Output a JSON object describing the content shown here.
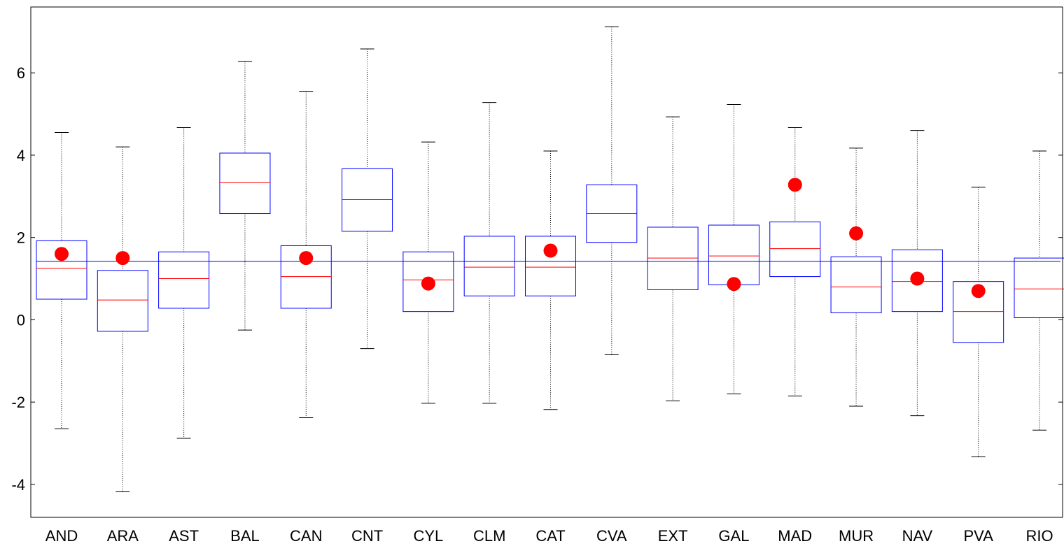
{
  "chart_data": {
    "type": "boxplot",
    "title": "",
    "xlabel": "",
    "ylabel": "",
    "ylim": [
      -4.8,
      7.6
    ],
    "yticks": [
      -4,
      -2,
      0,
      2,
      4,
      6
    ],
    "ytick_labels": [
      "-4",
      "-2",
      "0",
      "2",
      "4",
      "6"
    ],
    "reference_line": 1.42,
    "grid": false,
    "colors": {
      "box": "#0000ff",
      "median": "#ff0000",
      "whisker": "#000000",
      "point": "#ff0000",
      "reference": "#0000ff"
    },
    "categories": [
      "AND",
      "ARA",
      "AST",
      "BAL",
      "CAN",
      "CNT",
      "CYL",
      "CLM",
      "CAT",
      "CVA",
      "EXT",
      "GAL",
      "MAD",
      "MUR",
      "NAV",
      "PVA",
      "RIO"
    ],
    "boxes": [
      {
        "min": -2.65,
        "q1": 0.5,
        "median": 1.25,
        "q3": 1.92,
        "max": 4.55,
        "point": 1.6
      },
      {
        "min": -4.18,
        "q1": -0.28,
        "median": 0.48,
        "q3": 1.2,
        "max": 4.2,
        "point": 1.5
      },
      {
        "min": -2.88,
        "q1": 0.28,
        "median": 1.0,
        "q3": 1.65,
        "max": 4.67,
        "point": null
      },
      {
        "min": -0.25,
        "q1": 2.58,
        "median": 3.33,
        "q3": 4.05,
        "max": 6.28,
        "point": null
      },
      {
        "min": -2.38,
        "q1": 0.28,
        "median": 1.05,
        "q3": 1.8,
        "max": 5.55,
        "point": 1.5
      },
      {
        "min": -0.7,
        "q1": 2.15,
        "median": 2.92,
        "q3": 3.67,
        "max": 6.58,
        "point": null
      },
      {
        "min": -2.03,
        "q1": 0.2,
        "median": 0.97,
        "q3": 1.65,
        "max": 4.32,
        "point": 0.88
      },
      {
        "min": -2.03,
        "q1": 0.58,
        "median": 1.28,
        "q3": 2.03,
        "max": 5.28,
        "point": null
      },
      {
        "min": -2.18,
        "q1": 0.58,
        "median": 1.28,
        "q3": 2.03,
        "max": 4.1,
        "point": 1.68
      },
      {
        "min": -0.85,
        "q1": 1.88,
        "median": 2.58,
        "q3": 3.28,
        "max": 7.12,
        "point": null
      },
      {
        "min": -1.97,
        "q1": 0.73,
        "median": 1.5,
        "q3": 2.25,
        "max": 4.93,
        "point": null
      },
      {
        "min": -1.8,
        "q1": 0.85,
        "median": 1.55,
        "q3": 2.3,
        "max": 5.23,
        "point": 0.87
      },
      {
        "min": -1.85,
        "q1": 1.05,
        "median": 1.73,
        "q3": 2.38,
        "max": 4.67,
        "point": 3.28
      },
      {
        "min": -2.1,
        "q1": 0.17,
        "median": 0.8,
        "q3": 1.53,
        "max": 4.17,
        "point": 2.1
      },
      {
        "min": -2.33,
        "q1": 0.2,
        "median": 0.93,
        "q3": 1.7,
        "max": 4.6,
        "point": 1.0
      },
      {
        "min": -3.33,
        "q1": -0.55,
        "median": 0.2,
        "q3": 0.93,
        "max": 3.22,
        "point": 0.7
      },
      {
        "min": -2.68,
        "q1": 0.05,
        "median": 0.75,
        "q3": 1.5,
        "max": 4.1,
        "point": null
      }
    ]
  }
}
